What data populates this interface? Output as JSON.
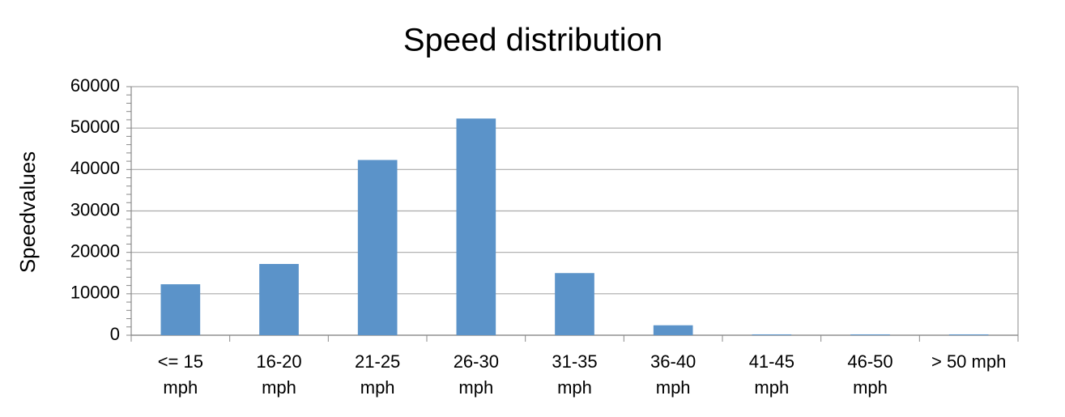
{
  "chart_data": {
    "type": "bar",
    "title": "Speed distribution",
    "y_label": "Speedvalues",
    "categories": [
      "<= 15 mph",
      "16-20 mph",
      "21-25 mph",
      "26-30 mph",
      "31-35 mph",
      "36-40 mph",
      "41-45 mph",
      "46-50 mph",
      "> 50 mph"
    ],
    "values": [
      12300,
      17200,
      42300,
      52300,
      15000,
      2400,
      200,
      200,
      200
    ],
    "color": "#5b93c9",
    "ylim": [
      0,
      60000
    ],
    "yticks": [
      0,
      10000,
      20000,
      30000,
      40000,
      50000,
      60000
    ],
    "grid": true
  }
}
